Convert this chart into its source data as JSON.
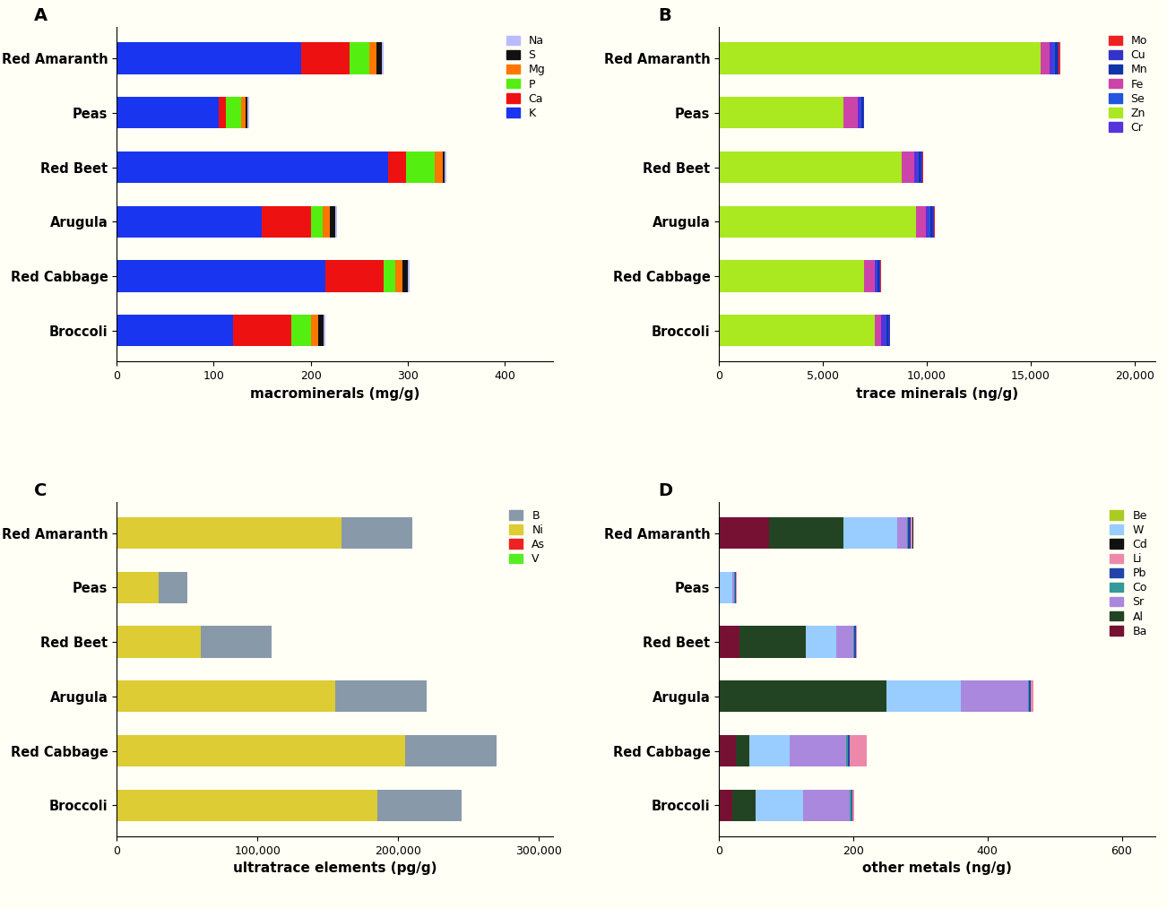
{
  "species": [
    "Red Amaranth",
    "Peas",
    "Red Beet",
    "Arugula",
    "Red Cabbage",
    "Broccoli"
  ],
  "bg_color": "#fffff5",
  "panel_A": {
    "title": "A",
    "xlabel": "macrominerals (mg/g)",
    "minerals": [
      "K",
      "Ca",
      "P",
      "Mg",
      "S",
      "Na"
    ],
    "colors": [
      "#1a35f0",
      "#ee1111",
      "#55ee11",
      "#ff7700",
      "#111111",
      "#bbbbff"
    ],
    "data": {
      "Red Amaranth": [
        190,
        50,
        20,
        8,
        5,
        2
      ],
      "Peas": [
        105,
        8,
        15,
        5,
        2,
        2
      ],
      "Red Beet": [
        280,
        18,
        30,
        8,
        2,
        2
      ],
      "Arugula": [
        150,
        50,
        12,
        8,
        5,
        2
      ],
      "Red Cabbage": [
        215,
        60,
        12,
        8,
        5,
        2
      ],
      "Broccoli": [
        120,
        60,
        20,
        8,
        5,
        2
      ]
    },
    "xlim": [
      0,
      450
    ]
  },
  "panel_B": {
    "title": "B",
    "xlabel": "trace minerals (ng/g)",
    "minerals": [
      "Zn",
      "Fe",
      "Cr",
      "Se",
      "Mn",
      "Cu",
      "Mo"
    ],
    "colors": [
      "#aae820",
      "#cc44aa",
      "#5533dd",
      "#2255dd",
      "#1133aa",
      "#3333cc",
      "#ee2222"
    ],
    "data": {
      "Red Amaranth": [
        15500,
        400,
        200,
        80,
        100,
        80,
        50
      ],
      "Peas": [
        6000,
        700,
        100,
        40,
        80,
        50,
        30
      ],
      "Red Beet": [
        8800,
        600,
        150,
        60,
        100,
        80,
        40
      ],
      "Arugula": [
        9500,
        450,
        150,
        60,
        120,
        80,
        50
      ],
      "Red Cabbage": [
        7000,
        500,
        100,
        40,
        80,
        50,
        30
      ],
      "Broccoli": [
        7500,
        300,
        200,
        80,
        80,
        60,
        30
      ]
    },
    "xlim": [
      0,
      22000
    ],
    "xticks": [
      0,
      5000,
      10000,
      15000,
      20000
    ]
  },
  "panel_C": {
    "title": "C",
    "xlabel": "ultratrace elements (pg/g)",
    "minerals": [
      "Ni",
      "B",
      "As",
      "V"
    ],
    "colors": [
      "#ddcc33",
      "#8899aa",
      "#ee2222",
      "#55ee22"
    ],
    "data": {
      "Red Amaranth": [
        160000,
        50000,
        0,
        0
      ],
      "Peas": [
        30000,
        20000,
        0,
        0
      ],
      "Red Beet": [
        60000,
        50000,
        0,
        0
      ],
      "Arugula": [
        155000,
        65000,
        0,
        0
      ],
      "Red Cabbage": [
        205000,
        65000,
        0,
        0
      ],
      "Broccoli": [
        185000,
        60000,
        0,
        0
      ]
    },
    "xlim": [
      0,
      310000
    ],
    "xticks": [
      0,
      100000,
      200000,
      300000
    ]
  },
  "panel_D": {
    "title": "D",
    "xlabel": "other metals (ng/g)",
    "minerals": [
      "Ba",
      "Al",
      "W",
      "Sr",
      "Co",
      "Pb",
      "Li",
      "Cd",
      "Be"
    ],
    "colors": [
      "#771133",
      "#224422",
      "#99ccff",
      "#aa88dd",
      "#339999",
      "#2244aa",
      "#ee88aa",
      "#111111",
      "#aacc22"
    ],
    "data": {
      "Red Amaranth": [
        75,
        110,
        80,
        15,
        2,
        3,
        3,
        1,
        0
      ],
      "Peas": [
        0,
        0,
        20,
        3,
        1,
        1,
        1,
        0,
        0
      ],
      "Red Beet": [
        30,
        100,
        45,
        25,
        2,
        2,
        2,
        0,
        0
      ],
      "Arugula": [
        0,
        250,
        110,
        100,
        2,
        3,
        3,
        0,
        0
      ],
      "Red Cabbage": [
        25,
        20,
        60,
        85,
        2,
        3,
        25,
        0,
        0
      ],
      "Broccoli": [
        20,
        35,
        70,
        70,
        2,
        2,
        3,
        0,
        0
      ]
    },
    "xlim": [
      0,
      650
    ],
    "xticks": [
      0,
      200,
      400,
      600
    ]
  }
}
